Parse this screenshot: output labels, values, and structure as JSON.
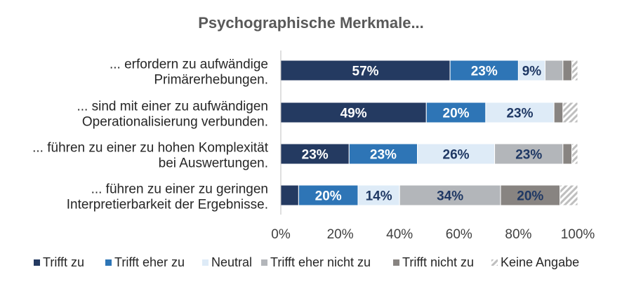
{
  "chart_data": {
    "type": "bar",
    "orientation": "horizontal",
    "stacked": true,
    "title": "Psychographische Merkmale...",
    "categories": [
      [
        "... erfordern zu aufwändige",
        "Primärerhebungen."
      ],
      [
        "... sind mit einer zu aufwändigen",
        "Operationalisierung verbunden."
      ],
      [
        "... führen zu einer zu hohen Komplexität",
        "bei Auswertungen."
      ],
      [
        "... führen zu einer zu geringen",
        "Interpretierbarkeit der Ergebnisse."
      ]
    ],
    "series": [
      {
        "name": "Trifft zu",
        "color": "#243a61",
        "label_color": "#ffffff",
        "pattern": false,
        "values": [
          57,
          49,
          23,
          6
        ],
        "labels": [
          "57%",
          "49%",
          "23%",
          ""
        ]
      },
      {
        "name": "Trifft eher zu",
        "color": "#2e75b6",
        "label_color": "#ffffff",
        "pattern": false,
        "values": [
          23,
          20,
          23,
          20
        ],
        "labels": [
          "23%",
          "20%",
          "23%",
          "20%"
        ]
      },
      {
        "name": "Neutral",
        "color": "#deebf7",
        "label_color": "#1f3864",
        "pattern": false,
        "values": [
          9,
          23,
          26,
          14
        ],
        "labels": [
          "9%",
          "23%",
          "26%",
          "14%"
        ]
      },
      {
        "name": "Trifft eher nicht zu",
        "color": "#b3b6ba",
        "label_color": "#1f3864",
        "pattern": false,
        "values": [
          6,
          0,
          23,
          34
        ],
        "labels": [
          "",
          "",
          "23%",
          "34%"
        ]
      },
      {
        "name": "Trifft nicht zu",
        "color": "#888481",
        "label_color": "#1f3864",
        "pattern": false,
        "values": [
          3,
          3,
          3,
          20
        ],
        "labels": [
          "",
          "",
          "",
          "20%"
        ]
      },
      {
        "name": "Keine Angabe",
        "color": "#c9c9c9",
        "label_color": "#1f3864",
        "pattern": true,
        "values": [
          2,
          5,
          2,
          6
        ],
        "labels": [
          "",
          "",
          "",
          ""
        ]
      }
    ],
    "xlim": [
      0,
      100
    ],
    "xticks": [
      "0%",
      "20%",
      "40%",
      "60%",
      "80%",
      "100%"
    ],
    "xtick_values": [
      0,
      20,
      40,
      60,
      80,
      100
    ],
    "grid": false,
    "legend_position": "bottom"
  }
}
